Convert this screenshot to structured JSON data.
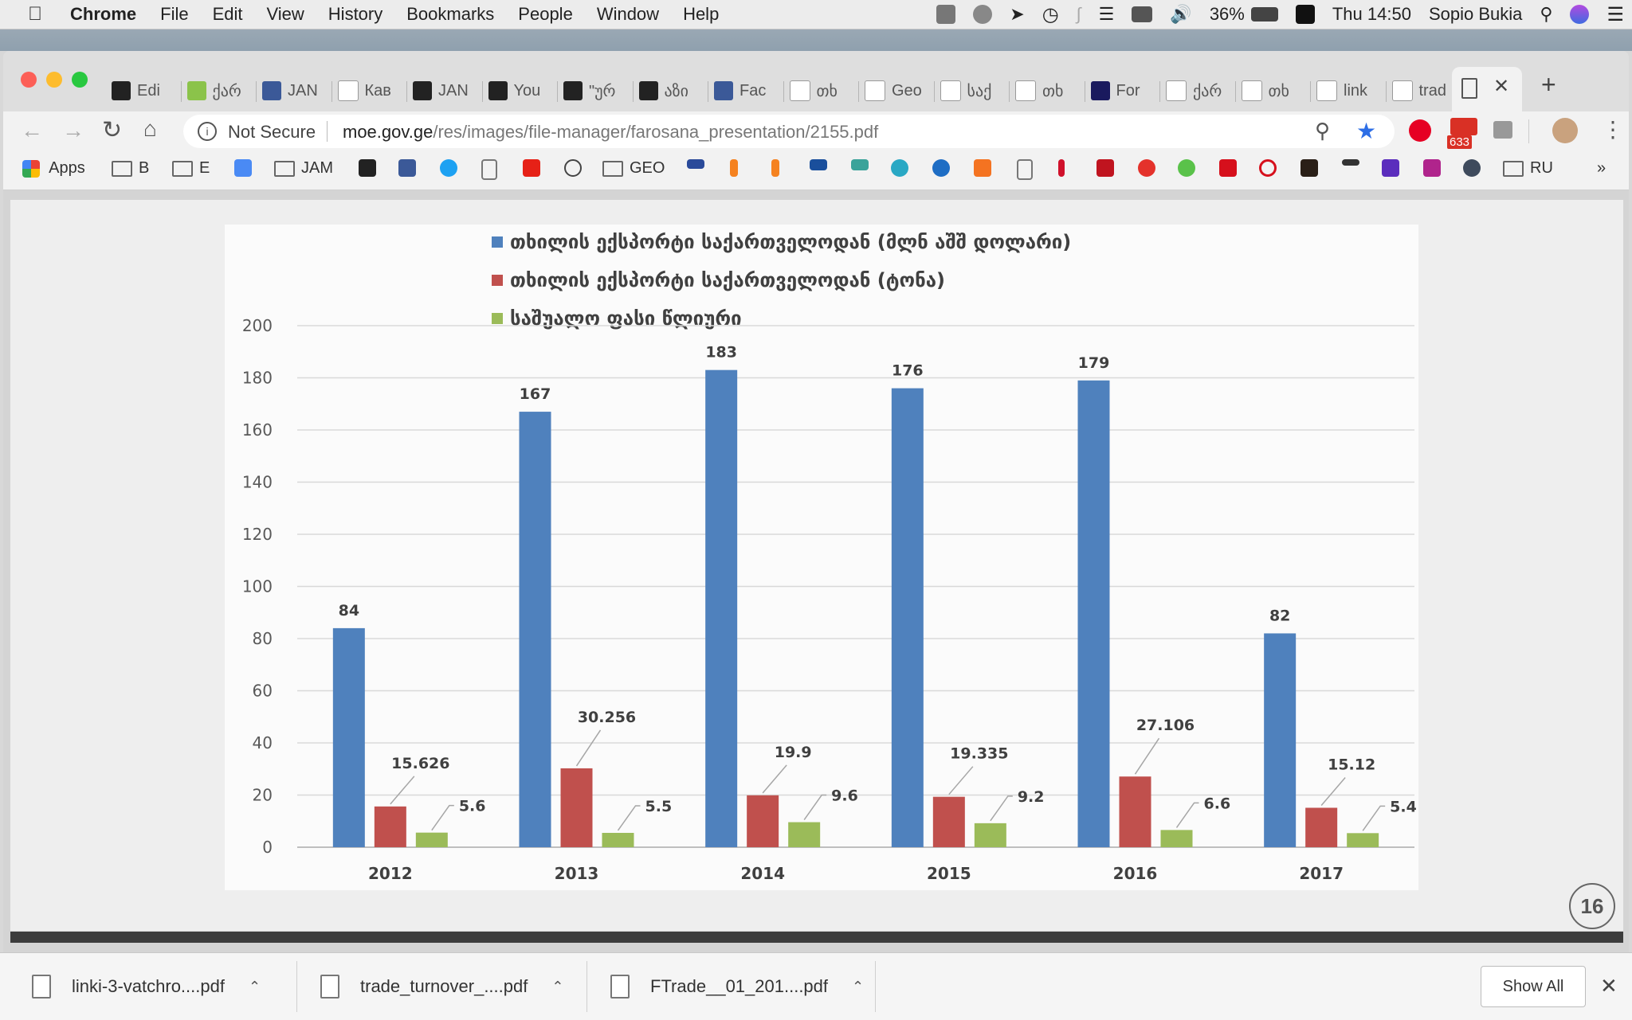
{
  "menubar": {
    "app": "Chrome",
    "items": [
      "File",
      "Edit",
      "View",
      "History",
      "Bookmarks",
      "People",
      "Window",
      "Help"
    ],
    "battery": "36%",
    "clock": "Thu 14:50",
    "user": "Sopio Bukia"
  },
  "tabs": [
    {
      "label": "Edi",
      "icon": "jam-icon"
    },
    {
      "label": "ქარ",
      "icon": "bpn-icon"
    },
    {
      "label": "JAN",
      "icon": "facebook-icon"
    },
    {
      "label": "Кав",
      "icon": "ky-icon"
    },
    {
      "label": "JAN",
      "icon": "jam-icon"
    },
    {
      "label": "You",
      "icon": "jam-icon"
    },
    {
      "label": "\"ურ",
      "icon": "jam-icon"
    },
    {
      "label": "აზი",
      "icon": "jam-icon"
    },
    {
      "label": "Fac",
      "icon": "facebook-icon"
    },
    {
      "label": "თხ",
      "icon": "google-icon"
    },
    {
      "label": "Geo",
      "icon": "chart-icon"
    },
    {
      "label": "საქ",
      "icon": "red-icon"
    },
    {
      "label": "თხ",
      "icon": "google-icon"
    },
    {
      "label": "For",
      "icon": "forbes-icon"
    },
    {
      "label": "ქარ",
      "icon": "star-icon"
    },
    {
      "label": "თხ",
      "icon": "google-icon"
    },
    {
      "label": "link",
      "icon": "file-icon"
    },
    {
      "label": "trad",
      "icon": "file-icon"
    }
  ],
  "address": {
    "security": "Not Secure",
    "domain": "moe.gov.ge",
    "path": "/res/images/file-manager/farosana_presentation/2155.pdf"
  },
  "gmail_badge": "633",
  "bookmarks": {
    "apps": "Apps",
    "b": "B",
    "e": "E",
    "jam": "JAM",
    "geo": "GEO",
    "ru": "RU",
    "more": "»"
  },
  "chart_data": {
    "type": "bar",
    "categories": [
      "2012",
      "2013",
      "2014",
      "2015",
      "2016",
      "2017"
    ],
    "series": [
      {
        "name": "თხილის ექსპორტი საქართველოდან (მლნ აშშ დოლარი)",
        "color": "#4f81bd",
        "values": [
          84,
          167,
          183,
          176,
          179,
          82
        ],
        "labels": [
          "84",
          "167",
          "183",
          "176",
          "179",
          "82"
        ]
      },
      {
        "name": "თხილის ექსპორტი საქართველოდან (ტონა)",
        "color": "#c0504d",
        "values": [
          15.626,
          30.256,
          19.9,
          19.335,
          27.106,
          15.12
        ],
        "labels": [
          "15.626",
          "30.256",
          "19.9",
          "19.335",
          "27.106",
          "15.12"
        ]
      },
      {
        "name": "საშუალო ფასი წლიური",
        "color": "#9bbb59",
        "values": [
          5.6,
          5.5,
          9.6,
          9.2,
          6.6,
          5.4
        ],
        "labels": [
          "5.6",
          "5.5",
          "9.6",
          "9.2",
          "6.6",
          "5.4"
        ]
      }
    ],
    "yticks": [
      "0",
      "20",
      "40",
      "60",
      "80",
      "100",
      "120",
      "140",
      "160",
      "180",
      "200"
    ],
    "ylim": [
      0,
      200
    ],
    "grid": true,
    "legend": "top"
  },
  "slide_number": "16",
  "downloads": [
    {
      "name": "linki-3-vatchro....pdf"
    },
    {
      "name": "trade_turnover_....pdf"
    },
    {
      "name": "FTrade__01_201....pdf"
    }
  ],
  "show_all": "Show All"
}
